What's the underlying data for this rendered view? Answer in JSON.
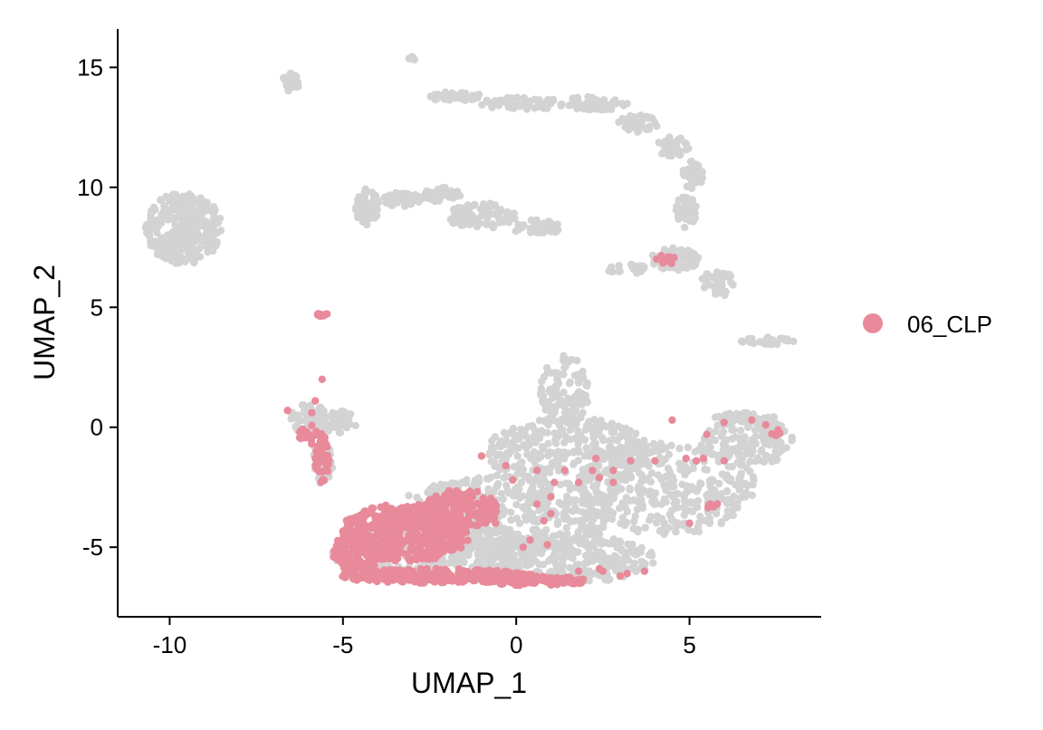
{
  "chart_data": {
    "type": "scatter",
    "title": "",
    "xlabel": "UMAP_1",
    "ylabel": "UMAP_2",
    "xlim": [
      -11.5,
      8.8
    ],
    "ylim": [
      -7.9,
      16.6
    ],
    "x_ticks": [
      -10,
      -5,
      0,
      5
    ],
    "x_tick_labels": [
      "-10",
      "-5",
      "0",
      "5"
    ],
    "y_ticks": [
      -5,
      0,
      5,
      10,
      15
    ],
    "y_tick_labels": [
      "-5",
      "0",
      "5",
      "10",
      "15"
    ],
    "grid": false,
    "legend_position": "right",
    "background_color": "#d3d3d3",
    "highlight_color": "#e88a9a",
    "legend": [
      {
        "label": "06_CLP",
        "color": "#e88a9a"
      }
    ],
    "background_regions": [
      {
        "cx": -9.6,
        "cy": 8.3,
        "rx": 1.1,
        "ry": 1.5,
        "n": 300
      },
      {
        "cx": -6.5,
        "cy": 14.4,
        "rx": 0.25,
        "ry": 0.4,
        "n": 30
      },
      {
        "cx": -3.0,
        "cy": 15.4,
        "rx": 0.1,
        "ry": 0.15,
        "n": 5
      },
      {
        "cx": -4.3,
        "cy": 9.2,
        "rx": 0.35,
        "ry": 0.8,
        "n": 60
      },
      {
        "cx": -3.3,
        "cy": 9.5,
        "rx": 0.6,
        "ry": 0.3,
        "n": 40
      },
      {
        "cx": -2.2,
        "cy": 9.7,
        "rx": 0.6,
        "ry": 0.3,
        "n": 40
      },
      {
        "cx": -1.0,
        "cy": 8.8,
        "rx": 1.0,
        "ry": 0.55,
        "n": 80
      },
      {
        "cx": 0.6,
        "cy": 8.3,
        "rx": 0.7,
        "ry": 0.35,
        "n": 40
      },
      {
        "cx": -1.8,
        "cy": 13.8,
        "rx": 0.8,
        "ry": 0.2,
        "n": 40
      },
      {
        "cx": 0.2,
        "cy": 13.5,
        "rx": 1.3,
        "ry": 0.25,
        "n": 60
      },
      {
        "cx": 2.3,
        "cy": 13.5,
        "rx": 1.0,
        "ry": 0.3,
        "n": 50
      },
      {
        "cx": 3.5,
        "cy": 12.6,
        "rx": 0.6,
        "ry": 0.45,
        "n": 40
      },
      {
        "cx": 4.5,
        "cy": 11.7,
        "rx": 0.5,
        "ry": 0.4,
        "n": 35
      },
      {
        "cx": 5.1,
        "cy": 10.5,
        "rx": 0.3,
        "ry": 0.6,
        "n": 40
      },
      {
        "cx": 4.9,
        "cy": 9.0,
        "rx": 0.3,
        "ry": 0.7,
        "n": 40
      },
      {
        "cx": 4.6,
        "cy": 7.0,
        "rx": 0.7,
        "ry": 0.5,
        "n": 60
      },
      {
        "cx": 3.2,
        "cy": 6.6,
        "rx": 0.6,
        "ry": 0.2,
        "n": 25
      },
      {
        "cx": 5.8,
        "cy": 6.0,
        "rx": 0.5,
        "ry": 0.6,
        "n": 40
      },
      {
        "cx": 7.3,
        "cy": 3.6,
        "rx": 0.8,
        "ry": 0.15,
        "n": 30
      },
      {
        "cx": -6.0,
        "cy": 0.4,
        "rx": 0.5,
        "ry": 0.7,
        "n": 50
      },
      {
        "cx": -5.2,
        "cy": 0.2,
        "rx": 0.6,
        "ry": 0.5,
        "n": 40
      },
      {
        "cx": -5.6,
        "cy": -1.5,
        "rx": 0.3,
        "ry": 0.9,
        "n": 30
      },
      {
        "cx": 1.4,
        "cy": 1.5,
        "rx": 0.7,
        "ry": 1.5,
        "n": 120
      },
      {
        "cx": 1.5,
        "cy": -1.0,
        "rx": 2.4,
        "ry": 1.4,
        "n": 300
      },
      {
        "cx": -0.3,
        "cy": -3.6,
        "rx": 3.2,
        "ry": 1.6,
        "n": 450
      },
      {
        "cx": -2.3,
        "cy": -5.2,
        "rx": 3.0,
        "ry": 1.3,
        "n": 350
      },
      {
        "cx": 4.4,
        "cy": -2.5,
        "rx": 2.5,
        "ry": 2.0,
        "n": 350
      },
      {
        "cx": 1.5,
        "cy": -5.5,
        "rx": 2.5,
        "ry": 1.0,
        "n": 250
      },
      {
        "cx": 6.7,
        "cy": -0.6,
        "rx": 1.3,
        "ry": 1.0,
        "n": 120
      },
      {
        "cx": 7.4,
        "cy": -0.3,
        "rx": 0.3,
        "ry": 0.5,
        "n": 30
      },
      {
        "cx": 6.6,
        "cy": 0.4,
        "rx": 0.9,
        "ry": 0.2,
        "n": 40
      }
    ],
    "highlight_regions": [
      {
        "cx": -3.2,
        "cy": -4.4,
        "rx": 1.9,
        "ry": 1.2,
        "n": 500
      },
      {
        "cx": -4.6,
        "cy": -5.2,
        "rx": 0.7,
        "ry": 0.8,
        "n": 150
      },
      {
        "cx": -1.6,
        "cy": -3.4,
        "rx": 1.1,
        "ry": 0.8,
        "n": 150
      },
      {
        "cx": -2.3,
        "cy": -6.2,
        "rx": 2.8,
        "ry": 0.3,
        "n": 250
      },
      {
        "cx": 0.5,
        "cy": -6.4,
        "rx": 1.6,
        "ry": 0.2,
        "n": 120
      },
      {
        "cx": -5.6,
        "cy": 4.7,
        "rx": 0.15,
        "ry": 0.08,
        "n": 12
      },
      {
        "cx": -5.9,
        "cy": -0.3,
        "rx": 0.4,
        "ry": 0.4,
        "n": 20
      },
      {
        "cx": -5.6,
        "cy": -1.4,
        "rx": 0.2,
        "ry": 0.9,
        "n": 40
      },
      {
        "cx": 4.3,
        "cy": 7.0,
        "rx": 0.4,
        "ry": 0.2,
        "n": 12
      },
      {
        "cx": 5.6,
        "cy": -3.3,
        "rx": 0.1,
        "ry": 0.1,
        "n": 6
      },
      {
        "cx": 7.5,
        "cy": -0.2,
        "rx": 0.15,
        "ry": 0.2,
        "n": 5
      }
    ],
    "highlight_points": [
      [
        -5.6,
        2.0
      ],
      [
        -5.8,
        1.1
      ],
      [
        -6.6,
        0.7
      ],
      [
        -5.9,
        0.6
      ],
      [
        -1.0,
        -1.2
      ],
      [
        -0.3,
        -1.6
      ],
      [
        0.6,
        -1.8
      ],
      [
        1.4,
        -1.8
      ],
      [
        2.2,
        -1.8
      ],
      [
        2.4,
        -2.1
      ],
      [
        1.0,
        -2.9
      ],
      [
        0.6,
        -3.2
      ],
      [
        1.0,
        -3.6
      ],
      [
        -0.8,
        -3.3
      ],
      [
        -0.6,
        -4.0
      ],
      [
        0.8,
        -3.9
      ],
      [
        0.2,
        -5.0
      ],
      [
        0.4,
        -4.7
      ],
      [
        0.9,
        -4.9
      ],
      [
        1.8,
        -2.3
      ],
      [
        2.8,
        -1.8
      ],
      [
        2.3,
        -1.3
      ],
      [
        2.8,
        -2.3
      ],
      [
        1.1,
        -2.3
      ],
      [
        3.3,
        -1.4
      ],
      [
        4.0,
        -1.4
      ],
      [
        4.9,
        -1.3
      ],
      [
        5.2,
        -1.4
      ],
      [
        6.0,
        -1.4
      ],
      [
        5.4,
        -1.3
      ],
      [
        5.6,
        -3.2
      ],
      [
        5.8,
        -3.2
      ],
      [
        5.0,
        -4.0
      ],
      [
        4.5,
        0.3
      ],
      [
        6.0,
        0.2
      ],
      [
        6.8,
        0.3
      ],
      [
        7.2,
        0.1
      ],
      [
        5.5,
        -0.3
      ],
      [
        2.5,
        -6.0
      ],
      [
        3.2,
        -6.1
      ],
      [
        1.8,
        -6.0
      ],
      [
        1.3,
        -6.4
      ],
      [
        3.0,
        -6.2
      ],
      [
        3.7,
        -6.0
      ],
      [
        2.4,
        -5.9
      ],
      [
        -0.1,
        -2.2
      ]
    ]
  }
}
